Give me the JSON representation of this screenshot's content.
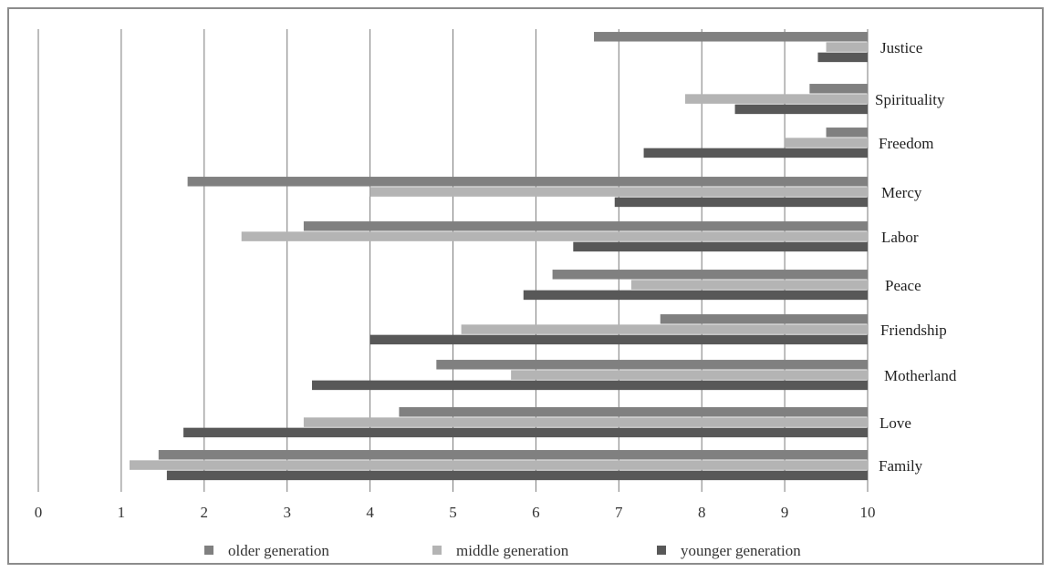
{
  "chart_data": {
    "type": "bar",
    "orientation": "horizontal",
    "x_axis": {
      "min": 0,
      "max": 10,
      "ticks": [
        "0",
        "1",
        "2",
        "3",
        "4",
        "5",
        "6",
        "7",
        "8",
        "9",
        "10"
      ],
      "reversed": true,
      "grid": true
    },
    "categories": [
      "Justice",
      "Spirituality",
      "Freedom",
      "Mercy",
      "Labor",
      "Peace",
      "Friendship",
      "Motherland",
      "Love",
      "Family"
    ],
    "series": [
      {
        "name": "older generation",
        "color": "#808080",
        "values": [
          6.7,
          9.3,
          9.5,
          1.8,
          3.2,
          6.2,
          7.5,
          4.8,
          4.35,
          1.45
        ]
      },
      {
        "name": "middle generation",
        "color": "#b4b4b4",
        "values": [
          9.5,
          7.8,
          9.0,
          4.0,
          2.45,
          7.15,
          5.1,
          5.7,
          3.2,
          1.1
        ]
      },
      {
        "name": "younger generation",
        "color": "#585858",
        "values": [
          9.4,
          8.4,
          7.3,
          6.95,
          6.45,
          5.85,
          4.0,
          3.3,
          1.75,
          1.55
        ]
      }
    ],
    "legend": {
      "position": "bottom"
    }
  }
}
